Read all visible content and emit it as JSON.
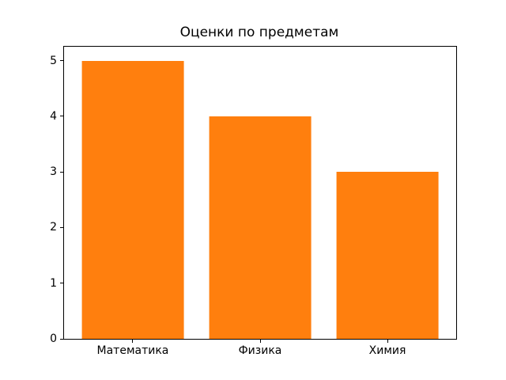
{
  "figure": {
    "background": "#ffffff",
    "spine_color": "#000000",
    "text_color": "#000000"
  },
  "chart_data": {
    "type": "bar",
    "title": "Оценки по предметам",
    "categories": [
      "Математика",
      "Физика",
      "Химия"
    ],
    "values": [
      5,
      4,
      3
    ],
    "xlabel": "",
    "ylabel": "",
    "ylim": [
      0,
      5.25
    ],
    "yticks": [
      0,
      1,
      2,
      3,
      4,
      5
    ],
    "bar_color": "#ff7f0e",
    "grid": false,
    "legend": null
  }
}
